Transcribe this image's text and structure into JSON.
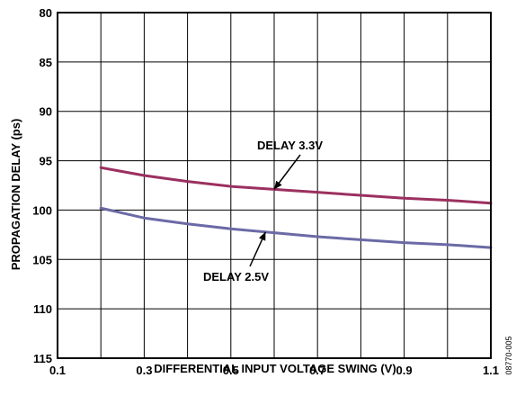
{
  "chart_data": {
    "type": "line",
    "xlabel": "DIFFERENTIAL INPUT VOLTAGE SWING (V)",
    "ylabel": "PROPAGATION DELAY (ps)",
    "xlim": [
      0.1,
      1.1
    ],
    "ylim": [
      80,
      115
    ],
    "y_inverted": true,
    "grid": true,
    "x_ticks": [
      0.1,
      0.2,
      0.3,
      0.4,
      0.5,
      0.6,
      0.7,
      0.8,
      0.9,
      1.0,
      1.1
    ],
    "x_tick_labels": [
      "0.1",
      "",
      "0.3",
      "",
      "0.5",
      "",
      "0.7",
      "",
      "0.9",
      "",
      "1.1"
    ],
    "y_ticks": [
      80,
      85,
      90,
      95,
      100,
      105,
      110,
      115
    ],
    "y_tick_labels": [
      "80",
      "85",
      "90",
      "95",
      "100",
      "105",
      "110",
      "115"
    ],
    "series": [
      {
        "name": "DELAY 3.3V",
        "color": "#9b3060",
        "x": [
          0.2,
          0.3,
          0.4,
          0.5,
          0.6,
          0.7,
          0.8,
          0.9,
          1.0,
          1.1
        ],
        "y": [
          95.7,
          96.5,
          97.1,
          97.6,
          97.9,
          98.2,
          98.5,
          98.8,
          99.0,
          99.3
        ]
      },
      {
        "name": "DELAY 2.5V",
        "color": "#6b6aa6",
        "x": [
          0.2,
          0.3,
          0.4,
          0.5,
          0.6,
          0.7,
          0.8,
          0.9,
          1.0,
          1.1
        ],
        "y": [
          99.8,
          100.8,
          101.4,
          101.9,
          102.3,
          102.7,
          103.0,
          103.3,
          103.5,
          103.8
        ]
      }
    ],
    "annotations": [
      {
        "text": "DELAY 3.3V",
        "series": 0
      },
      {
        "text": "DELAY 2.5V",
        "series": 1
      }
    ],
    "figure_id": "08770-005"
  }
}
